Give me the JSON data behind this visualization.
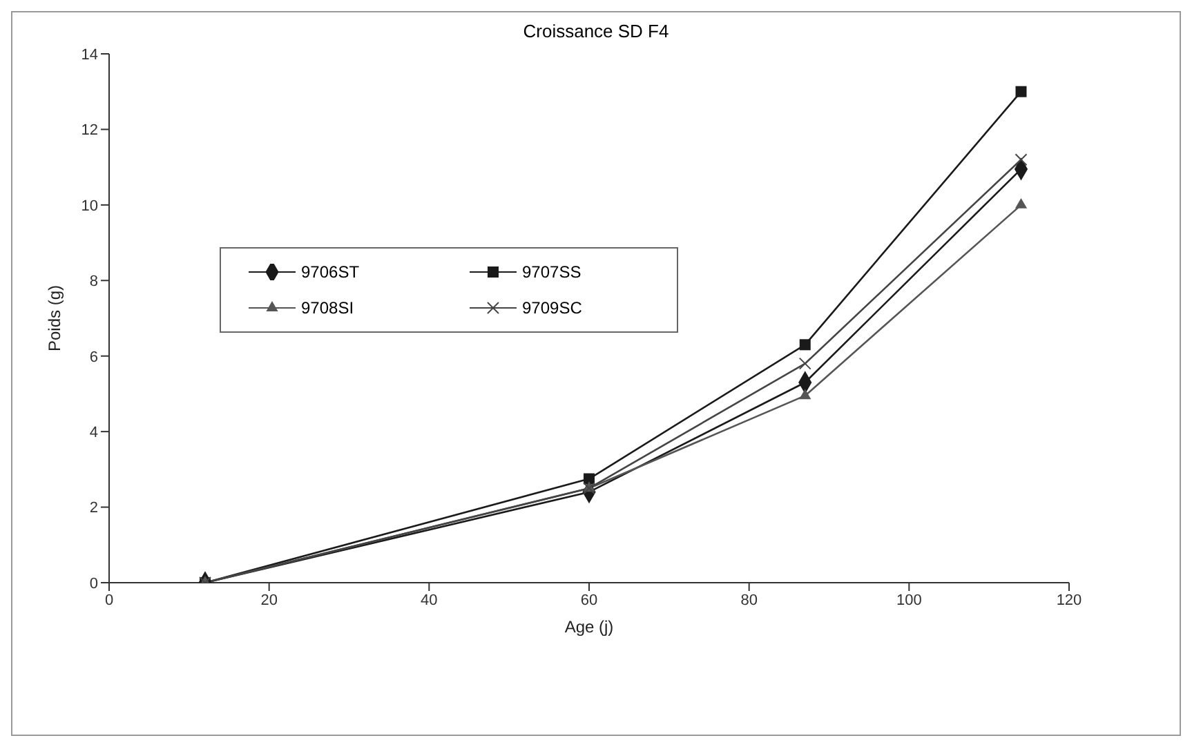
{
  "chart_data": {
    "type": "line",
    "title": "Croissance SD F4",
    "xlabel": "Age (j)",
    "ylabel": "Poids (g)",
    "x": [
      12,
      60,
      87,
      114
    ],
    "series": [
      {
        "name": "9706ST",
        "color": "#1a1a1a",
        "marker": "diamond",
        "values": [
          0,
          2.4,
          5.3,
          10.95
        ]
      },
      {
        "name": "9707SS",
        "color": "#1a1a1a",
        "marker": "square",
        "values": [
          0,
          2.75,
          6.3,
          13
        ]
      },
      {
        "name": "9708SI",
        "color": "#555555",
        "marker": "triangle",
        "values": [
          0,
          2.5,
          4.95,
          10
        ]
      },
      {
        "name": "9709SC",
        "color": "#444444",
        "marker": "cross",
        "values": [
          0,
          2.5,
          5.8,
          11.2
        ]
      }
    ],
    "xlim": [
      0,
      120
    ],
    "xticks": [
      0,
      20,
      40,
      60,
      80,
      100,
      120
    ],
    "ylim": [
      0,
      14
    ],
    "yticks": [
      0,
      2,
      4,
      6,
      8,
      10,
      12,
      14
    ],
    "grid": false,
    "legend": "top left"
  }
}
